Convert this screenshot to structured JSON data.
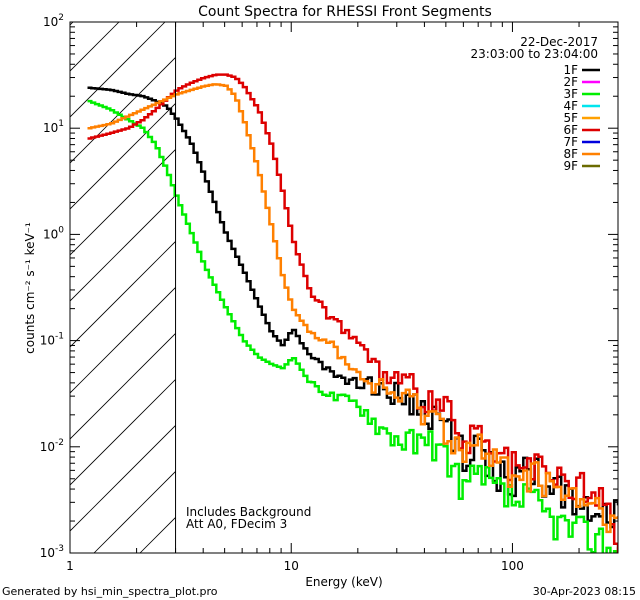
{
  "chart_data": {
    "type": "line",
    "title": "Count Spectra for RHESSI Front Segments",
    "xlabel": "Energy (keV)",
    "ylabel": "counts cm⁻² s⁻¹ keV⁻¹",
    "x_scale": "log",
    "y_scale": "log",
    "xlim": [
      1.0,
      300.0
    ],
    "ylim": [
      0.001,
      100.0
    ],
    "x_ticks": [
      {
        "value": 1,
        "label": "1"
      },
      {
        "value": 10,
        "label": "10"
      },
      {
        "value": 100,
        "label": "100"
      }
    ],
    "y_ticks": [
      {
        "value": 0.001,
        "base": "10",
        "exp": "-3"
      },
      {
        "value": 0.01,
        "base": "10",
        "exp": "-2"
      },
      {
        "value": 0.1,
        "base": "10",
        "exp": "-1"
      },
      {
        "value": 1,
        "base": "10",
        "exp": "0"
      },
      {
        "value": 10,
        "base": "10",
        "exp": "1"
      },
      {
        "value": 100,
        "base": "10",
        "exp": "2"
      }
    ],
    "hatched_region": [
      1.0,
      3.0
    ],
    "date": "22-Dec-2017",
    "time_range": "23:03:00 to 23:04:00",
    "annotation_lines": [
      "Includes Background",
      "Att A0, FDecim 3"
    ],
    "legend_position": "top-right",
    "series": [
      {
        "name": "1F",
        "color": "#000000",
        "plotted": true,
        "x": [
          1.2,
          1.5,
          1.8,
          2.1,
          2.4,
          2.7,
          3.0,
          3.5,
          4.0,
          5.0,
          6.0,
          7.0,
          8.0,
          9.0,
          10.0,
          12.0,
          15.0,
          20.0,
          25.0,
          30.0,
          40.0,
          50.0,
          60.0,
          70.0,
          80.0,
          100.0,
          120.0,
          150.0,
          200.0,
          250.0,
          300.0
        ],
        "values": [
          24,
          23,
          21,
          20,
          18,
          16,
          12,
          7,
          3.5,
          1.0,
          0.45,
          0.22,
          0.12,
          0.09,
          0.13,
          0.07,
          0.05,
          0.04,
          0.035,
          0.03,
          0.02,
          0.015,
          0.008,
          0.009,
          0.006,
          0.005,
          0.006,
          0.004,
          0.003,
          0.003,
          0.002
        ]
      },
      {
        "name": "2F",
        "color": "#ff00ff",
        "plotted": false
      },
      {
        "name": "3F",
        "color": "#00ee00",
        "plotted": true,
        "x": [
          1.2,
          1.5,
          1.8,
          2.1,
          2.4,
          2.7,
          3.0,
          3.5,
          4.0,
          5.0,
          6.0,
          7.0,
          8.0,
          9.0,
          10.0,
          12.0,
          15.0,
          20.0,
          25.0,
          30.0,
          40.0,
          50.0,
          60.0,
          70.0,
          80.0,
          100.0,
          120.0,
          150.0,
          200.0,
          250.0,
          300.0
        ],
        "values": [
          18,
          15,
          12,
          10,
          7,
          4,
          2.2,
          1.0,
          0.5,
          0.2,
          0.1,
          0.07,
          0.06,
          0.055,
          0.07,
          0.04,
          0.03,
          0.025,
          0.015,
          0.012,
          0.01,
          0.008,
          0.004,
          0.005,
          0.004,
          0.003,
          0.003,
          0.002,
          0.0015,
          0.0013,
          0.001
        ]
      },
      {
        "name": "4F",
        "color": "#00e5ee",
        "plotted": false
      },
      {
        "name": "5F",
        "color": "#ffa000",
        "plotted": false
      },
      {
        "name": "6F",
        "color": "#dd0000",
        "plotted": true,
        "x": [
          1.2,
          1.5,
          1.8,
          2.1,
          2.4,
          2.7,
          3.0,
          3.5,
          4.0,
          4.5,
          5.0,
          5.5,
          6.0,
          7.0,
          8.0,
          9.0,
          10.0,
          12.0,
          15.0,
          18.0,
          20.0,
          25.0,
          30.0,
          40.0,
          50.0,
          60.0,
          70.0,
          80.0,
          100.0,
          120.0,
          150.0,
          200.0,
          250.0,
          300.0
        ],
        "values": [
          8,
          9,
          10,
          12,
          15,
          19,
          23,
          27,
          30,
          32,
          32,
          30,
          25,
          15,
          7,
          2.5,
          0.9,
          0.28,
          0.16,
          0.12,
          0.09,
          0.05,
          0.04,
          0.03,
          0.02,
          0.01,
          0.012,
          0.008,
          0.006,
          0.006,
          0.005,
          0.004,
          0.003,
          0.0012
        ]
      },
      {
        "name": "7F",
        "color": "#0000dd",
        "plotted": false
      },
      {
        "name": "8F",
        "color": "#ff8000",
        "plotted": true,
        "x": [
          1.2,
          1.5,
          1.8,
          2.1,
          2.4,
          2.7,
          3.0,
          3.5,
          4.0,
          4.5,
          5.0,
          5.5,
          6.0,
          7.0,
          8.0,
          9.0,
          10.0,
          12.0,
          15.0,
          18.0,
          20.0,
          25.0,
          30.0,
          40.0,
          50.0,
          60.0,
          70.0,
          80.0,
          100.0,
          120.0,
          150.0,
          200.0,
          250.0,
          300.0
        ],
        "values": [
          10,
          11,
          13,
          15,
          17,
          19,
          21,
          23,
          25,
          26,
          25,
          20,
          12,
          4.0,
          1.2,
          0.4,
          0.2,
          0.12,
          0.09,
          0.06,
          0.045,
          0.035,
          0.03,
          0.022,
          0.015,
          0.009,
          0.01,
          0.007,
          0.006,
          0.005,
          0.004,
          0.003,
          0.0025,
          0.0015
        ]
      },
      {
        "name": "9F",
        "color": "#6b6b00",
        "plotted": false
      }
    ]
  },
  "footer": {
    "generated_by": "Generated by hsi_min_spectra_plot.pro",
    "timestamp": "30-Apr-2023 08:15"
  }
}
